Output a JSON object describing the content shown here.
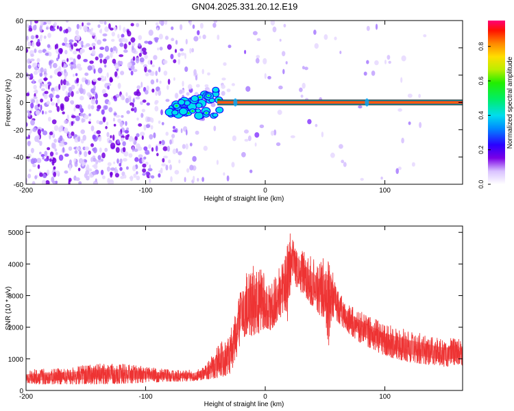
{
  "title": "GN04.2025.331.20.12.E19",
  "chart_data": [
    {
      "type": "heatmap",
      "title": "GN04.2025.331.20.12.E19",
      "xlabel": "Height of straight line (km)",
      "ylabel": "Frequency (Hz)",
      "xlim": [
        -200,
        165
      ],
      "ylim": [
        -60,
        60
      ],
      "x_ticks": [
        -200,
        -100,
        0,
        100
      ],
      "y_ticks": [
        -60,
        -40,
        -20,
        0,
        20,
        40,
        60
      ],
      "colorbar": {
        "label": "Normalized spectral amplitude",
        "range": [
          0.0,
          0.95
        ],
        "ticks": [
          0.0,
          0.2,
          0.4,
          0.6,
          0.8
        ],
        "tick_labels": [
          "0.0",
          "0.2",
          "0.4",
          "0.6",
          "0.8"
        ]
      },
      "features": {
        "noise_region_x": [
          -200,
          -50
        ],
        "noise_density": [
          {
            "x": -200,
            "d": 0.9
          },
          {
            "x": -150,
            "d": 0.85
          },
          {
            "x": -110,
            "d": 0.7
          },
          {
            "x": -80,
            "d": 0.45
          },
          {
            "x": -60,
            "d": 0.2
          },
          {
            "x": -45,
            "d": 0.08
          },
          {
            "x": 165,
            "d": 0.01
          }
        ],
        "onset_cluster_x": [
          -80,
          -38
        ],
        "onset_cluster_freq": [
          -8,
          14
        ],
        "tone_line": {
          "x_start": -40,
          "x_end": 165,
          "freq": 0,
          "amplitude": 0.95
        }
      }
    },
    {
      "type": "line",
      "xlabel": "Height of straight line (km)",
      "ylabel": "SNR (10 * v/v)",
      "xlim": [
        -200,
        165
      ],
      "ylim": [
        0,
        5200
      ],
      "x_ticks": [
        -200,
        -100,
        0,
        100
      ],
      "y_ticks": [
        0,
        1000,
        2000,
        3000,
        4000,
        5000
      ],
      "color": "#ee3333",
      "series": [
        {
          "name": "SNR",
          "envelope_x": [
            -200,
            -180,
            -160,
            -140,
            -120,
            -100,
            -80,
            -60,
            -50,
            -40,
            -30,
            -25,
            -20,
            -15,
            -10,
            -5,
            0,
            5,
            10,
            15,
            18,
            21,
            22,
            25,
            30,
            35,
            40,
            45,
            50,
            53,
            55,
            58,
            60,
            65,
            70,
            80,
            90,
            100,
            110,
            120,
            130,
            140,
            150,
            160,
            165
          ],
          "envelope_low": [
            200,
            200,
            200,
            200,
            220,
            250,
            280,
            300,
            350,
            400,
            500,
            900,
            1600,
            1800,
            1700,
            1800,
            2000,
            1900,
            2200,
            2400,
            1800,
            3200,
            3500,
            3300,
            3100,
            2900,
            2600,
            2400,
            2300,
            1400,
            2200,
            2400,
            2200,
            2000,
            1800,
            1500,
            1300,
            1100,
            1000,
            900,
            850,
            800,
            750,
            800,
            800
          ],
          "envelope_high": [
            650,
            700,
            750,
            850,
            850,
            750,
            650,
            650,
            800,
            1400,
            1800,
            2400,
            3300,
            3800,
            4000,
            4200,
            3600,
            3400,
            3800,
            4100,
            4500,
            5200,
            4900,
            4700,
            4500,
            4300,
            4200,
            4000,
            4300,
            4600,
            4200,
            3600,
            3300,
            2900,
            2700,
            2500,
            2300,
            2100,
            2000,
            1900,
            1800,
            1700,
            1600,
            1700,
            1500
          ]
        }
      ]
    }
  ]
}
